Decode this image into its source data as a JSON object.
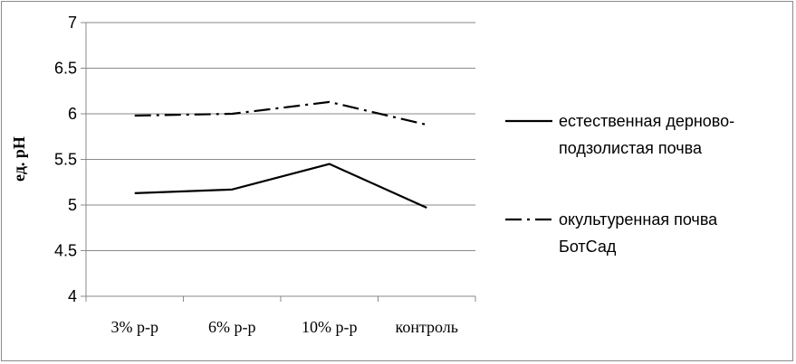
{
  "chart_data": {
    "type": "line",
    "title": "",
    "xlabel": "",
    "ylabel": "ед. pH",
    "categories": [
      "3% р-р",
      "6% р-р",
      "10% р-р",
      "контроль"
    ],
    "ylim": [
      4,
      7
    ],
    "yticks": [
      "4",
      "4.5",
      "5",
      "5.5",
      "6",
      "6.5",
      "7"
    ],
    "grid": "horizontal",
    "legend_position": "right",
    "series": [
      {
        "name_lines": [
          "естественная дерново-",
          "подзолистая почва"
        ],
        "values": [
          5.13,
          5.17,
          5.45,
          4.97
        ],
        "style": "solid",
        "color": "#000000"
      },
      {
        "name_lines": [
          "окультуренная почва",
          "БотСад"
        ],
        "values": [
          5.98,
          6.0,
          6.13,
          5.88
        ],
        "style": "dash-dot",
        "color": "#000000"
      }
    ]
  }
}
